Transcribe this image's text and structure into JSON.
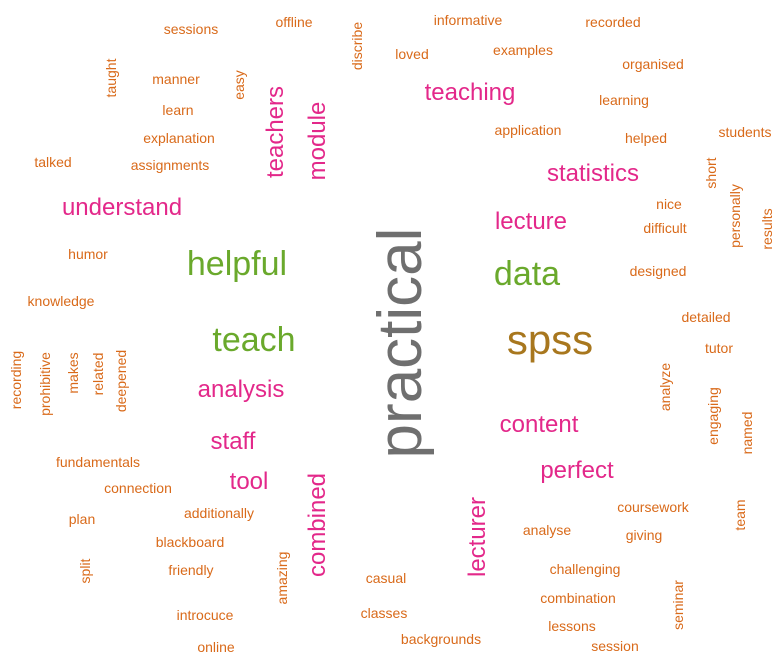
{
  "word_cloud": {
    "colors": {
      "tier1": "#d96a1a",
      "tier2": "#e3288a",
      "tier3": "#6aa92c",
      "tier4": "#a8771e",
      "tier5": "#6f6f6f"
    },
    "words": [
      {
        "text": "practical",
        "weight": 5
      },
      {
        "text": "spss",
        "weight": 4
      },
      {
        "text": "helpful",
        "weight": 3
      },
      {
        "text": "teach",
        "weight": 3
      },
      {
        "text": "data",
        "weight": 3
      },
      {
        "text": "teaching",
        "weight": 2
      },
      {
        "text": "teachers",
        "weight": 2
      },
      {
        "text": "module",
        "weight": 2
      },
      {
        "text": "statistics",
        "weight": 2
      },
      {
        "text": "understand",
        "weight": 2
      },
      {
        "text": "lecture",
        "weight": 2
      },
      {
        "text": "analysis",
        "weight": 2
      },
      {
        "text": "staff",
        "weight": 2
      },
      {
        "text": "tool",
        "weight": 2
      },
      {
        "text": "combined",
        "weight": 2
      },
      {
        "text": "content",
        "weight": 2
      },
      {
        "text": "perfect",
        "weight": 2
      },
      {
        "text": "lecturer",
        "weight": 2
      },
      {
        "text": "sessions",
        "weight": 1
      },
      {
        "text": "offline",
        "weight": 1
      },
      {
        "text": "discribe",
        "weight": 1
      },
      {
        "text": "informative",
        "weight": 1
      },
      {
        "text": "recorded",
        "weight": 1
      },
      {
        "text": "loved",
        "weight": 1
      },
      {
        "text": "examples",
        "weight": 1
      },
      {
        "text": "organised",
        "weight": 1
      },
      {
        "text": "taught",
        "weight": 1
      },
      {
        "text": "manner",
        "weight": 1
      },
      {
        "text": "easy",
        "weight": 1
      },
      {
        "text": "learning",
        "weight": 1
      },
      {
        "text": "learn",
        "weight": 1
      },
      {
        "text": "explanation",
        "weight": 1
      },
      {
        "text": "application",
        "weight": 1
      },
      {
        "text": "helped",
        "weight": 1
      },
      {
        "text": "students",
        "weight": 1
      },
      {
        "text": "talked",
        "weight": 1
      },
      {
        "text": "assignments",
        "weight": 1
      },
      {
        "text": "short",
        "weight": 1
      },
      {
        "text": "nice",
        "weight": 1
      },
      {
        "text": "personally",
        "weight": 1
      },
      {
        "text": "results",
        "weight": 1
      },
      {
        "text": "difficult",
        "weight": 1
      },
      {
        "text": "humor",
        "weight": 1
      },
      {
        "text": "designed",
        "weight": 1
      },
      {
        "text": "knowledge",
        "weight": 1
      },
      {
        "text": "detailed",
        "weight": 1
      },
      {
        "text": "tutor",
        "weight": 1
      },
      {
        "text": "recording",
        "weight": 1
      },
      {
        "text": "prohibitive",
        "weight": 1
      },
      {
        "text": "makes",
        "weight": 1
      },
      {
        "text": "related",
        "weight": 1
      },
      {
        "text": "deepened",
        "weight": 1
      },
      {
        "text": "analyze",
        "weight": 1
      },
      {
        "text": "engaging",
        "weight": 1
      },
      {
        "text": "named",
        "weight": 1
      },
      {
        "text": "fundamentals",
        "weight": 1
      },
      {
        "text": "connection",
        "weight": 1
      },
      {
        "text": "plan",
        "weight": 1
      },
      {
        "text": "additionally",
        "weight": 1
      },
      {
        "text": "coursework",
        "weight": 1
      },
      {
        "text": "analyse",
        "weight": 1
      },
      {
        "text": "giving",
        "weight": 1
      },
      {
        "text": "team",
        "weight": 1
      },
      {
        "text": "blackboard",
        "weight": 1
      },
      {
        "text": "split",
        "weight": 1
      },
      {
        "text": "friendly",
        "weight": 1
      },
      {
        "text": "amazing",
        "weight": 1
      },
      {
        "text": "casual",
        "weight": 1
      },
      {
        "text": "challenging",
        "weight": 1
      },
      {
        "text": "combination",
        "weight": 1
      },
      {
        "text": "seminar",
        "weight": 1
      },
      {
        "text": "introcuce",
        "weight": 1
      },
      {
        "text": "classes",
        "weight": 1
      },
      {
        "text": "lessons",
        "weight": 1
      },
      {
        "text": "backgrounds",
        "weight": 1
      },
      {
        "text": "online",
        "weight": 1
      },
      {
        "text": "session",
        "weight": 1
      }
    ]
  }
}
